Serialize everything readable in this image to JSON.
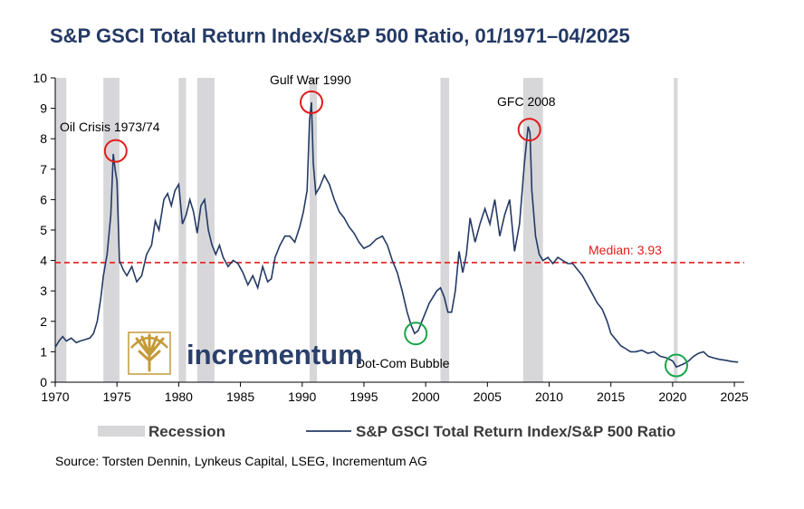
{
  "colors": {
    "title": "#243a65",
    "line": "#243a65",
    "recession": "#d7d7da",
    "median": "#e31b1b",
    "peak_circle": "#e31b1b",
    "trough_circle": "#1aa64a",
    "logo_gold": "#c49a3a"
  },
  "chart_data": {
    "type": "line",
    "title": "S&P GSCI Total Return Index/S&P 500 Ratio, 01/1971–04/2025",
    "xlim": [
      1970,
      2025.8
    ],
    "ylim": [
      0,
      10
    ],
    "xticks": [
      "1970",
      "1975",
      "1980",
      "1985",
      "1990",
      "1995",
      "2000",
      "2005",
      "2010",
      "2015",
      "2020",
      "2025"
    ],
    "yticks": [
      "0",
      "1",
      "2",
      "3",
      "4",
      "5",
      "6",
      "7",
      "8",
      "9",
      "10"
    ],
    "series": [
      {
        "name": "S&P GSCI Total Return Index/S&P 500 Ratio",
        "x": [
          1970.0,
          1970.3,
          1970.6,
          1970.9,
          1971.3,
          1971.7,
          1972.0,
          1972.4,
          1972.8,
          1973.1,
          1973.4,
          1973.7,
          1973.9,
          1974.2,
          1974.5,
          1974.7,
          1974.85,
          1975.0,
          1975.2,
          1975.5,
          1975.8,
          1976.2,
          1976.6,
          1977.0,
          1977.4,
          1977.8,
          1978.1,
          1978.4,
          1978.8,
          1979.1,
          1979.4,
          1979.7,
          1980.0,
          1980.3,
          1980.6,
          1980.9,
          1981.2,
          1981.5,
          1981.8,
          1982.1,
          1982.4,
          1982.7,
          1983.0,
          1983.3,
          1983.6,
          1984.0,
          1984.4,
          1984.8,
          1985.2,
          1985.6,
          1986.0,
          1986.4,
          1986.8,
          1987.2,
          1987.5,
          1987.8,
          1988.2,
          1988.6,
          1989.0,
          1989.4,
          1989.8,
          1990.1,
          1990.4,
          1990.6,
          1990.75,
          1990.9,
          1991.1,
          1991.4,
          1991.8,
          1992.2,
          1992.6,
          1993.0,
          1993.4,
          1993.8,
          1994.2,
          1994.6,
          1995.0,
          1995.5,
          1996.0,
          1996.5,
          1996.9,
          1997.3,
          1997.7,
          1998.1,
          1998.5,
          1998.8,
          1999.1,
          1999.4,
          1999.7,
          2000.0,
          2000.3,
          2000.6,
          2000.9,
          2001.2,
          2001.5,
          2001.8,
          2002.1,
          2002.4,
          2002.7,
          2003.0,
          2003.3,
          2003.6,
          2004.0,
          2004.4,
          2004.8,
          2005.2,
          2005.6,
          2006.0,
          2006.4,
          2006.8,
          2007.2,
          2007.6,
          2008.0,
          2008.3,
          2008.45,
          2008.6,
          2008.9,
          2009.2,
          2009.5,
          2009.9,
          2010.3,
          2010.7,
          2011.1,
          2011.5,
          2011.9,
          2012.3,
          2012.7,
          2013.1,
          2013.5,
          2013.9,
          2014.3,
          2014.7,
          2015.0,
          2015.4,
          2015.8,
          2016.2,
          2016.6,
          2017.0,
          2017.5,
          2018.0,
          2018.5,
          2019.0,
          2019.5,
          2020.0,
          2020.3,
          2020.6,
          2020.9,
          2021.3,
          2021.7,
          2022.1,
          2022.5,
          2022.9,
          2023.3,
          2023.8,
          2024.3,
          2024.8,
          2025.3
        ],
        "values": [
          1.15,
          1.35,
          1.5,
          1.35,
          1.45,
          1.3,
          1.35,
          1.4,
          1.45,
          1.6,
          2.0,
          2.8,
          3.5,
          4.2,
          5.5,
          7.5,
          7.0,
          6.6,
          4.0,
          3.7,
          3.5,
          3.8,
          3.3,
          3.5,
          4.2,
          4.5,
          5.3,
          5.0,
          6.0,
          6.2,
          5.8,
          6.3,
          6.5,
          5.2,
          5.5,
          6.0,
          5.6,
          4.9,
          5.8,
          6.0,
          5.0,
          4.5,
          4.2,
          4.5,
          4.1,
          3.8,
          4.0,
          3.9,
          3.6,
          3.2,
          3.5,
          3.1,
          3.8,
          3.3,
          3.4,
          4.1,
          4.5,
          4.8,
          4.8,
          4.6,
          5.1,
          5.6,
          6.3,
          8.6,
          9.2,
          7.2,
          6.2,
          6.4,
          6.8,
          6.5,
          6.0,
          5.6,
          5.4,
          5.1,
          4.9,
          4.6,
          4.4,
          4.5,
          4.7,
          4.8,
          4.5,
          4.0,
          3.6,
          3.0,
          2.3,
          1.9,
          1.6,
          1.7,
          2.0,
          2.3,
          2.6,
          2.8,
          3.0,
          3.1,
          2.8,
          2.3,
          2.3,
          3.0,
          4.3,
          3.6,
          4.2,
          5.4,
          4.6,
          5.2,
          5.7,
          5.2,
          6.0,
          4.8,
          5.5,
          6.0,
          4.3,
          5.2,
          7.2,
          8.4,
          8.2,
          6.3,
          4.8,
          4.2,
          4.0,
          4.1,
          3.9,
          4.1,
          4.0,
          3.9,
          3.9,
          3.7,
          3.5,
          3.2,
          2.9,
          2.6,
          2.4,
          2.0,
          1.6,
          1.4,
          1.2,
          1.1,
          1.0,
          1.0,
          1.05,
          0.95,
          1.0,
          0.85,
          0.8,
          0.7,
          0.5,
          0.55,
          0.6,
          0.7,
          0.85,
          0.95,
          1.0,
          0.85,
          0.8,
          0.75,
          0.72,
          0.68,
          0.66
        ]
      }
    ],
    "recessions": [
      [
        1970.0,
        1970.9
      ],
      [
        1973.9,
        1975.2
      ],
      [
        1980.0,
        1980.6
      ],
      [
        1981.5,
        1982.9
      ],
      [
        1990.6,
        1991.2
      ],
      [
        2001.2,
        2001.9
      ],
      [
        2007.9,
        2009.5
      ],
      [
        2020.1,
        2020.4
      ]
    ],
    "median": {
      "value": 3.93,
      "label": "Median: 3.93"
    },
    "annotations": [
      {
        "label": "Oil Crisis 1973/74",
        "x": 1974.9,
        "y": 7.6,
        "marker": "peak"
      },
      {
        "label": "Gulf War 1990",
        "x": 1990.75,
        "y": 9.2,
        "marker": "peak"
      },
      {
        "label": "GFC 2008",
        "x": 2008.4,
        "y": 8.3,
        "marker": "peak"
      },
      {
        "label": "Dot-Com Bubble",
        "x": 1999.2,
        "y": 1.6,
        "marker": "trough"
      },
      {
        "label": "",
        "x": 2020.3,
        "y": 0.55,
        "marker": "trough"
      }
    ],
    "legend": [
      {
        "label": "Recession",
        "kind": "band"
      },
      {
        "label": "S&P GSCI Total Return Index/S&P 500 Ratio",
        "kind": "line"
      }
    ]
  },
  "logo": {
    "text": "incrementum"
  },
  "source": "Source: Torsten Dennin, Lynkeus Capital, LSEG, Incrementum AG"
}
